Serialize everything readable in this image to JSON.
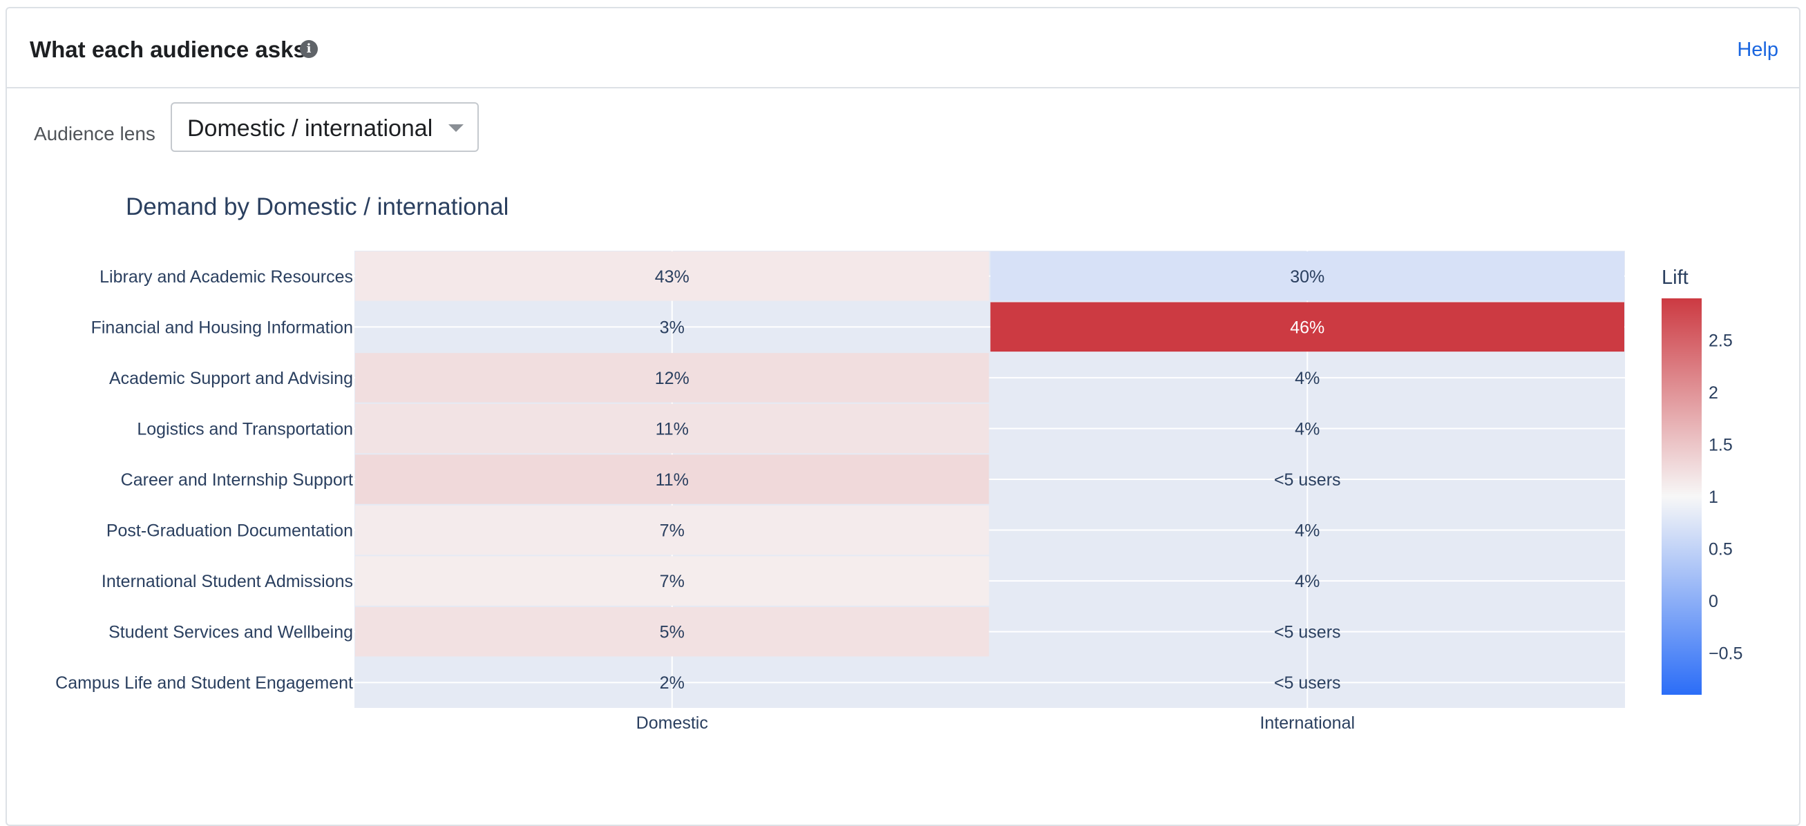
{
  "card": {
    "title": "What each audience asks",
    "info_icon": "info-icon",
    "help_label": "Help"
  },
  "controls": {
    "lens_label": "Audience lens",
    "lens_value": "Domestic / international"
  },
  "chart_data": {
    "type": "heatmap",
    "title": "Demand by Domestic / international",
    "columns": [
      "Domestic",
      "International"
    ],
    "rows": [
      "Library and Academic Resources",
      "Financial and Housing Information",
      "Academic Support and Advising",
      "Logistics and Transportation",
      "Career and Internship Support",
      "Post-Graduation Documentation",
      "International Student Admissions",
      "Student Services and Wellbeing",
      "Campus Life and Student Engagement"
    ],
    "cell_labels": [
      [
        "43%",
        "30%"
      ],
      [
        "3%",
        "46%"
      ],
      [
        "12%",
        "4%"
      ],
      [
        "11%",
        "4%"
      ],
      [
        "11%",
        "<5 users"
      ],
      [
        "7%",
        "4%"
      ],
      [
        "7%",
        "4%"
      ],
      [
        "5%",
        "<5 users"
      ],
      [
        "2%",
        "<5 users"
      ]
    ],
    "lift": [
      [
        1.15,
        0.7
      ],
      [
        null,
        2.9
      ],
      [
        1.25,
        null
      ],
      [
        1.2,
        null
      ],
      [
        1.3,
        null
      ],
      [
        1.12,
        null
      ],
      [
        1.1,
        null
      ],
      [
        1.22,
        null
      ],
      [
        null,
        null
      ]
    ],
    "colorbar": {
      "title": "Lift",
      "range": [
        -0.9,
        2.9
      ],
      "ticks": [
        2.5,
        2,
        1.5,
        1,
        0.5,
        0,
        -0.5
      ],
      "tick_labels": [
        "2.5",
        "2",
        "1.5",
        "1",
        "0.5",
        "0",
        "−0.5"
      ],
      "colorscale": [
        "#2b6df7",
        "#f7f7f7",
        "#cc3a42"
      ]
    },
    "colors": {
      "missing_cell": "#e5eaf4",
      "text_dark": "#2a3f5f",
      "text_light": "#ffffff"
    }
  }
}
